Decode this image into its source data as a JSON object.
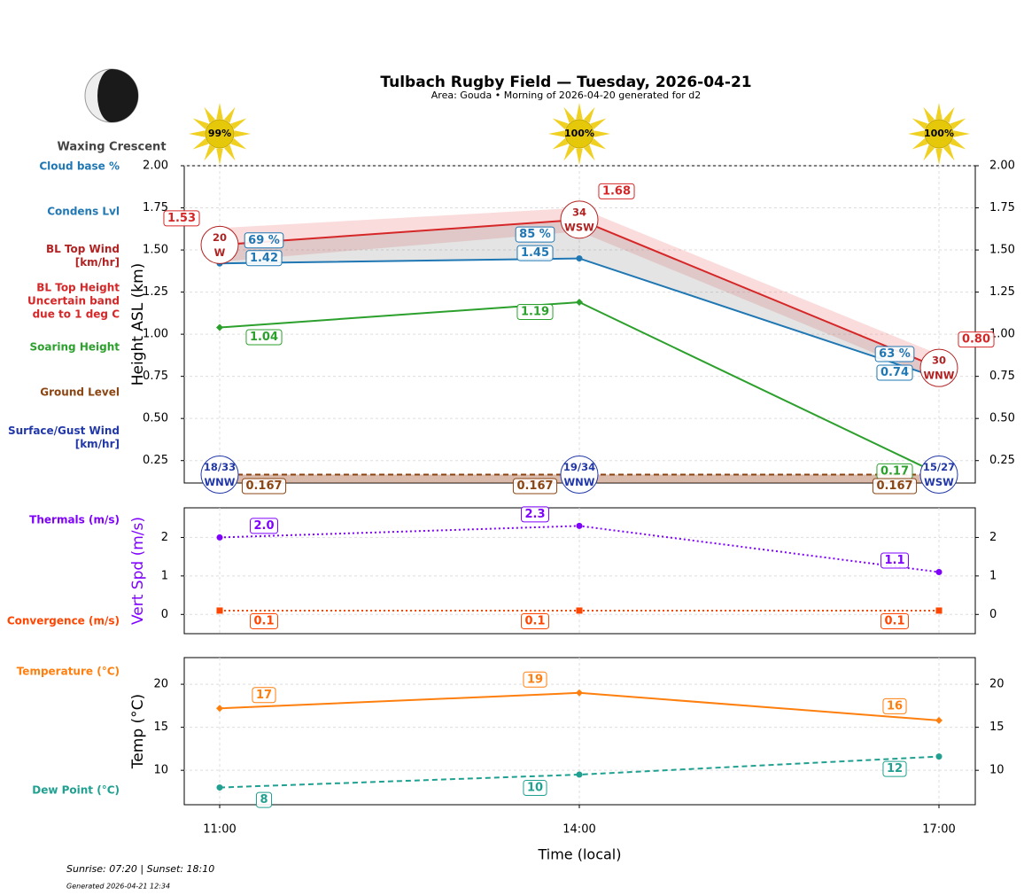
{
  "header": {
    "title": "Tulbach Rugby Field — Tuesday, 2026-04-21",
    "subtitle": "Area: Gouda • Morning of 2026-04-20 generated for d2"
  },
  "moon": {
    "phase": "Waxing Crescent"
  },
  "sun": {
    "values": [
      99,
      100,
      100
    ],
    "value_labels": [
      "99%",
      "100%",
      "100%"
    ]
  },
  "chart_data": [
    {
      "type": "line",
      "ylabel": "Height ASL (km)",
      "ylim": [
        0.117,
        2.0
      ],
      "yticks": [
        0.25,
        {
          "value": 0.5,
          "label": "0.50"
        },
        0.75,
        {
          "value": 1,
          "label": "1.00"
        },
        1.25,
        {
          "value": 1.5,
          "label": "1.50"
        },
        1.75,
        {
          "value": 2,
          "label": "2.00"
        }
      ],
      "grid": true,
      "series": [
        {
          "name": "Cloud base %",
          "color": "#1f77b4",
          "values": [
            69,
            85,
            63
          ],
          "value_labels": [
            "69 %",
            "85 %",
            "63 %"
          ],
          "line_style": "none",
          "marker": "none"
        },
        {
          "name": "Condens Lvl",
          "color": "#1f77b4",
          "values": [
            1.42,
            1.45,
            0.74
          ],
          "value_labels": [
            "1.42",
            "1.45",
            "0.74"
          ],
          "line_style": "solid",
          "marker": "circle"
        },
        {
          "name": "BL Top Wind\n[km/hr]",
          "color": "#b22222",
          "values": [
            20,
            34,
            30
          ],
          "directions": [
            "W",
            "WSW",
            "WNW"
          ],
          "line_style": "none",
          "marker": "none"
        },
        {
          "name": "BL Top Height\nUncertain band\ndue to 1 deg C",
          "color": "#d62728",
          "values": [
            1.53,
            1.68,
            0.8
          ],
          "value_labels": [
            "1.53",
            "1.68",
            "0.80"
          ],
          "band_low": [
            1.43,
            1.61,
            0.73
          ],
          "band_high": [
            1.63,
            1.75,
            0.88
          ],
          "line_style": "solid",
          "marker": "none"
        },
        {
          "name": "Soaring Height",
          "color": "#2ca02c",
          "values": [
            1.04,
            1.19,
            0.17
          ],
          "value_labels": [
            "1.04",
            "1.19",
            "0.17"
          ],
          "line_style": "solid",
          "marker": "diamond"
        },
        {
          "name": "Ground Level",
          "color": "#8b4513",
          "values": [
            0.167,
            0.167,
            0.167
          ],
          "value_labels": [
            "0.167",
            "0.167",
            "0.167"
          ],
          "line_style": "dashed",
          "marker": "none"
        },
        {
          "name": "Surface/Gust Wind\n[km/hr]",
          "color": "#2238a8",
          "values": [
            18,
            19,
            15
          ],
          "gusts": [
            33,
            34,
            27
          ],
          "value_labels": [
            "18/33",
            "19/34",
            "15/27"
          ],
          "directions": [
            "WNW",
            "WNW",
            "WSW"
          ],
          "line_style": "none",
          "marker": "none"
        }
      ]
    },
    {
      "type": "line",
      "ylabel": "Vert Spd (m/s)",
      "ylabel_color": "#7f00ff",
      "ylim": [
        -0.5,
        2.77
      ],
      "yticks": [
        0,
        1,
        2
      ],
      "grid": true,
      "series": [
        {
          "name": "Thermals (m/s)",
          "color": "#7f00ff",
          "values": [
            2.0,
            2.3,
            1.1
          ],
          "value_labels": [
            "2.0",
            "2.3",
            "1.1"
          ],
          "line_style": "dotted",
          "marker": "circle"
        },
        {
          "name": "Convergence (m/s)",
          "color": "#ff4500",
          "values": [
            0.1,
            0.1,
            0.1
          ],
          "value_labels": [
            "0.1",
            "0.1",
            "0.1"
          ],
          "line_style": "dotted",
          "marker": "square"
        }
      ]
    },
    {
      "type": "line",
      "ylabel": "Temp (°C)",
      "xlabel": "Time (local)",
      "categories": [
        "11:00",
        "14:00",
        "17:00"
      ],
      "ylim": [
        6.0,
        23.1
      ],
      "yticks": [
        10,
        15,
        20
      ],
      "grid": true,
      "series": [
        {
          "name": "Temperature (°C)",
          "color": "#ff7f0e",
          "values": [
            17.2,
            19.0,
            15.8
          ],
          "value_labels": [
            "17",
            "19",
            "16"
          ],
          "line_style": "solid",
          "marker": "diamond"
        },
        {
          "name": "Dew Point (°C)",
          "color": "#20a090",
          "values": [
            8.0,
            9.5,
            11.6
          ],
          "value_labels": [
            "8",
            "10",
            "12"
          ],
          "line_style": "dashed",
          "marker": "circle"
        }
      ]
    }
  ],
  "footer": {
    "sun_times": "Sunrise: 07:20 | Sunset: 18:10",
    "generated": "Generated 2026-04-21 12:34"
  }
}
